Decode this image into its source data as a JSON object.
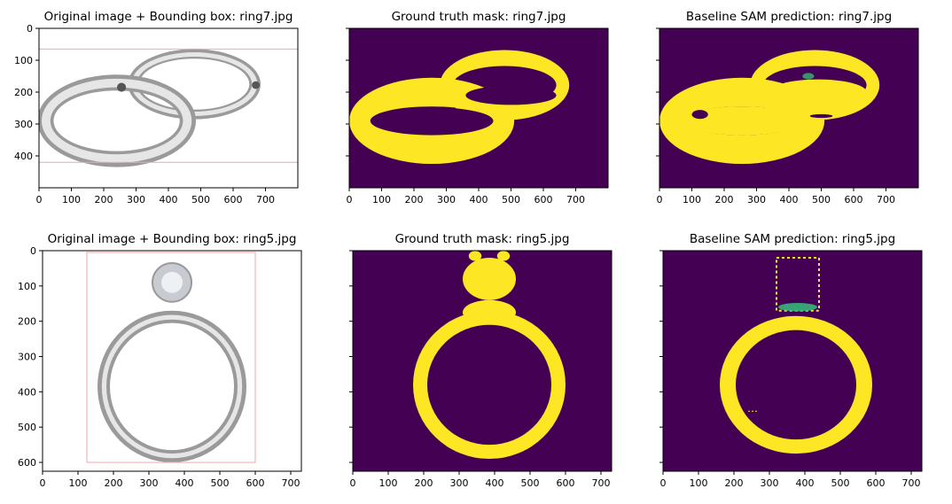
{
  "colors": {
    "background": "#ffffff",
    "axis": "#000000",
    "mask_bg": "#440154",
    "mask_fg": "#fde725",
    "mask_mid": "#35b779",
    "bbox": "#f4a6a6",
    "ring_metal": "#9a9a9a",
    "ring_dark": "#555555",
    "ring_light": "#e6e6e6"
  },
  "rows": [
    {
      "name": "ring7",
      "xticks": [
        "0",
        "100",
        "200",
        "300",
        "400",
        "500",
        "600",
        "700"
      ],
      "yticks": [
        "0",
        "100",
        "200",
        "300",
        "400"
      ],
      "panels": [
        {
          "kind": "original",
          "title": "Original image + Bounding box: ring7.jpg",
          "ylabels": true
        },
        {
          "kind": "gt",
          "title": "Ground truth mask: ring7.jpg",
          "ylabels": false
        },
        {
          "kind": "pred",
          "title": "Baseline SAM prediction: ring7.jpg",
          "ylabels": false
        }
      ]
    },
    {
      "name": "ring5",
      "xticks": [
        "0",
        "100",
        "200",
        "300",
        "400",
        "500",
        "600",
        "700"
      ],
      "yticks": [
        "0",
        "100",
        "200",
        "300",
        "400",
        "500",
        "600"
      ],
      "panels": [
        {
          "kind": "original",
          "title": "Original image + Bounding box: ring5.jpg",
          "ylabels": true
        },
        {
          "kind": "gt",
          "title": "Ground truth mask: ring5.jpg",
          "ylabels": false
        },
        {
          "kind": "pred",
          "title": "Baseline SAM prediction: ring5.jpg",
          "ylabels": false
        }
      ]
    }
  ]
}
